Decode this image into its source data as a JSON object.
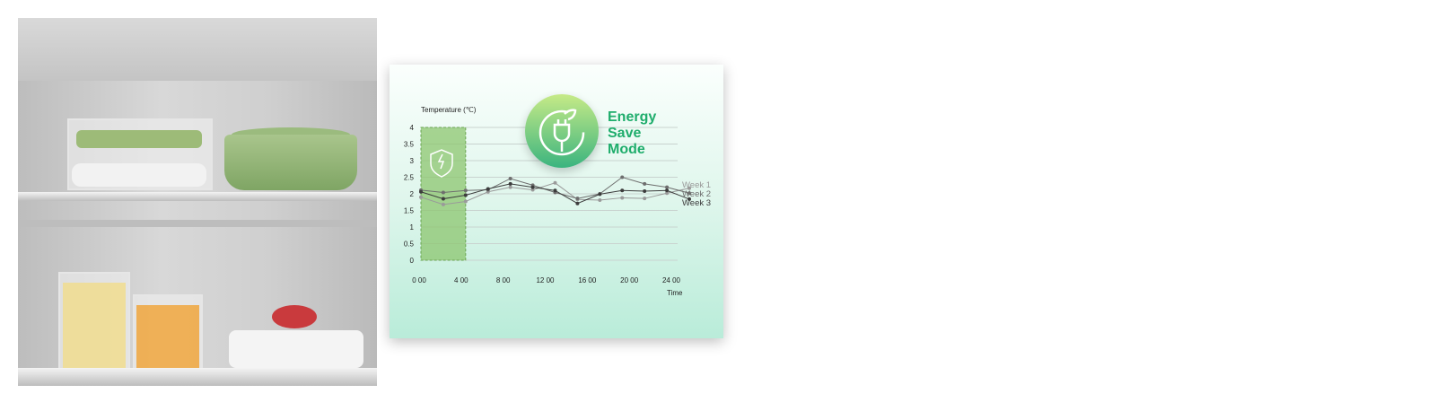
{
  "badge": {
    "lines": [
      "Energy",
      "Save",
      "Mode"
    ],
    "icon": "plug-leaf-icon",
    "color": "#1fad6c"
  },
  "chart_data": {
    "type": "line",
    "ylabel": "Temperature (℃)",
    "xlabel": "Time",
    "x": [
      0,
      2,
      4,
      6,
      8,
      10,
      12,
      14,
      16,
      18,
      20,
      22,
      24
    ],
    "xticks": [
      "0 00",
      "4 00",
      "8 00",
      "12 00",
      "16 00",
      "20 00",
      "24 00"
    ],
    "yticks": [
      "0",
      "0.5",
      "1",
      "1.5",
      "2",
      "2.5",
      "3",
      "3.5",
      "4"
    ],
    "ylim": [
      0,
      4
    ],
    "grid": true,
    "shaded_region": {
      "x": [
        0,
        4
      ],
      "color": "#8cc56f",
      "icon": "shield-plug-bolt-icon"
    },
    "series": [
      {
        "name": "Week 1",
        "color": "#9a9a9a",
        "values": [
          1.9,
          1.68,
          1.77,
          2.06,
          2.2,
          2.12,
          2.33,
          1.83,
          1.81,
          1.88,
          1.86,
          2.02,
          2.17
        ]
      },
      {
        "name": "Week 2",
        "color": "#6e6e6e",
        "values": [
          2.11,
          2.04,
          2.1,
          2.12,
          2.46,
          2.26,
          2.04,
          1.86,
          2.0,
          2.5,
          2.3,
          2.2,
          2.02
        ]
      },
      {
        "name": "Week 3",
        "color": "#3c3c3c",
        "values": [
          2.06,
          1.85,
          1.96,
          2.15,
          2.3,
          2.2,
          2.1,
          1.71,
          1.99,
          2.1,
          2.08,
          2.1,
          1.84
        ]
      }
    ]
  }
}
